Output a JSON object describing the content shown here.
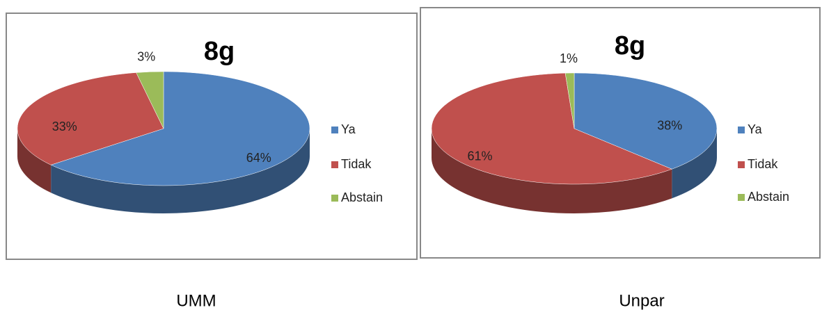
{
  "chart_data": [
    {
      "type": "pie",
      "title": "8g",
      "categories": [
        "Ya",
        "Tidak",
        "Abstain"
      ],
      "values": [
        64,
        33,
        3
      ],
      "value_labels": [
        "64%",
        "33%",
        "3%"
      ],
      "colors": [
        "#4f81bd",
        "#c0504d",
        "#9bbb59"
      ],
      "legend": "right"
    },
    {
      "type": "pie",
      "title": "8g",
      "categories": [
        "Ya",
        "Tidak",
        "Abstain"
      ],
      "values": [
        38,
        61,
        1
      ],
      "value_labels": [
        "38%",
        "61%",
        "1%"
      ],
      "colors": [
        "#4f81bd",
        "#c0504d",
        "#9bbb59"
      ],
      "legend": "right"
    }
  ],
  "captions": [
    "UMM",
    "Unpar"
  ]
}
